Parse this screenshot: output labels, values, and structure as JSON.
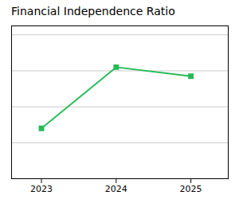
{
  "chart_data": {
    "type": "line",
    "title": "Financial Independence Ratio",
    "x": [
      2023,
      2024,
      2025
    ],
    "values": [
      0.28,
      0.62,
      0.57
    ],
    "color": "#22bb55",
    "marker": "square",
    "xlim": [
      2022.6,
      2025.5
    ],
    "xticks": [
      2023,
      2024,
      2025
    ],
    "ylim": [
      0.0,
      0.85
    ],
    "yticks": [
      0,
      0.2,
      0.4,
      0.6,
      0.8
    ],
    "grid": true,
    "tick_labels": "x"
  }
}
